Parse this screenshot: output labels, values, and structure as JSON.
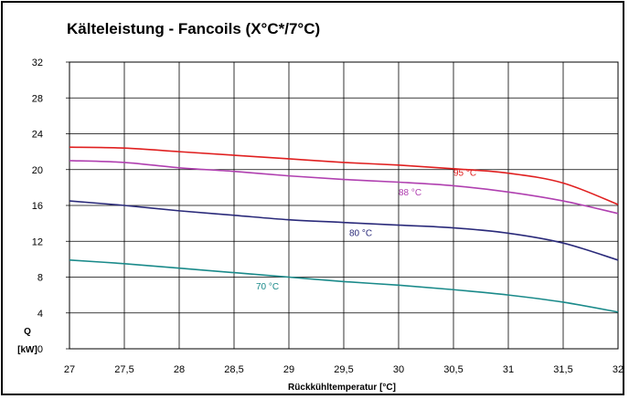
{
  "chart_data": {
    "type": "line",
    "title": "Kälteleistung - Fancoils (X°C*/7°C)",
    "xlabel": "Rückkühltemperatur [°C]",
    "ylabel": "Q [kW]",
    "ylabel_lines": [
      "Q",
      "[kW]"
    ],
    "xlim": [
      27,
      32
    ],
    "ylim": [
      0,
      32
    ],
    "x_ticks": [
      "27",
      "27,5",
      "28",
      "28,5",
      "29",
      "29,5",
      "30",
      "30,5",
      "31",
      "31,5",
      "32"
    ],
    "y_ticks": [
      "0",
      "4",
      "8",
      "12",
      "16",
      "20",
      "24",
      "28",
      "32"
    ],
    "grid": true,
    "series": [
      {
        "name": "95 °C",
        "color": "#e02020",
        "label_at": [
          30.5,
          19.3
        ],
        "points": [
          [
            27,
            22.5
          ],
          [
            27.5,
            22.4
          ],
          [
            28,
            22.0
          ],
          [
            28.5,
            21.6
          ],
          [
            29,
            21.2
          ],
          [
            29.5,
            20.8
          ],
          [
            30,
            20.5
          ],
          [
            30.5,
            20.1
          ],
          [
            31,
            19.6
          ],
          [
            31.5,
            18.5
          ],
          [
            32,
            16.1
          ]
        ]
      },
      {
        "name": "88 °C",
        "color": "#b040b0",
        "label_at": [
          30.0,
          17.1
        ],
        "points": [
          [
            27,
            21.0
          ],
          [
            27.5,
            20.8
          ],
          [
            28,
            20.2
          ],
          [
            28.5,
            19.8
          ],
          [
            29,
            19.3
          ],
          [
            29.5,
            18.9
          ],
          [
            30,
            18.6
          ],
          [
            30.5,
            18.2
          ],
          [
            31,
            17.5
          ],
          [
            31.5,
            16.5
          ],
          [
            32,
            15.1
          ]
        ]
      },
      {
        "name": "80 °C",
        "color": "#2a2a7a",
        "label_at": [
          29.55,
          12.6
        ],
        "points": [
          [
            27,
            16.5
          ],
          [
            27.5,
            16.0
          ],
          [
            28,
            15.4
          ],
          [
            28.5,
            14.9
          ],
          [
            29,
            14.4
          ],
          [
            29.5,
            14.1
          ],
          [
            30,
            13.8
          ],
          [
            30.5,
            13.5
          ],
          [
            31,
            12.9
          ],
          [
            31.5,
            11.8
          ],
          [
            32,
            9.9
          ]
        ]
      },
      {
        "name": "70 °C",
        "color": "#1a8a8a",
        "label_at": [
          28.7,
          6.6
        ],
        "points": [
          [
            27,
            9.9
          ],
          [
            27.5,
            9.5
          ],
          [
            28,
            9.0
          ],
          [
            28.5,
            8.5
          ],
          [
            29,
            8.0
          ],
          [
            29.5,
            7.5
          ],
          [
            30,
            7.1
          ],
          [
            30.5,
            6.6
          ],
          [
            31,
            6.0
          ],
          [
            31.5,
            5.2
          ],
          [
            32,
            4.1
          ]
        ]
      }
    ]
  }
}
